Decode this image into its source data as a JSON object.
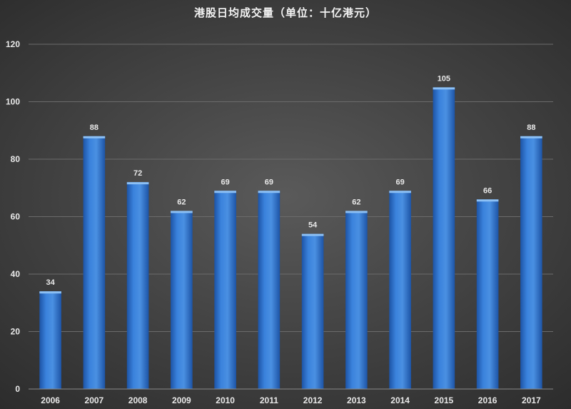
{
  "chart_data": {
    "type": "bar",
    "title": "港股日均成交量（单位：十亿港元）",
    "categories": [
      "2006",
      "2007",
      "2008",
      "2009",
      "2010",
      "2011",
      "2012",
      "2013",
      "2014",
      "2015",
      "2016",
      "2017"
    ],
    "values": [
      34,
      88,
      72,
      62,
      69,
      69,
      54,
      62,
      69,
      105,
      66,
      88
    ],
    "ylim": [
      0,
      120
    ],
    "yticks": [
      0,
      20,
      40,
      60,
      80,
      100,
      120
    ],
    "grid": true,
    "legend": "none",
    "colors": {
      "bar_light": "#4a90e2",
      "bar_mid": "#2f74d0",
      "bar_dark": "#1d54a6",
      "bar_top": "#8cc0f5"
    }
  }
}
